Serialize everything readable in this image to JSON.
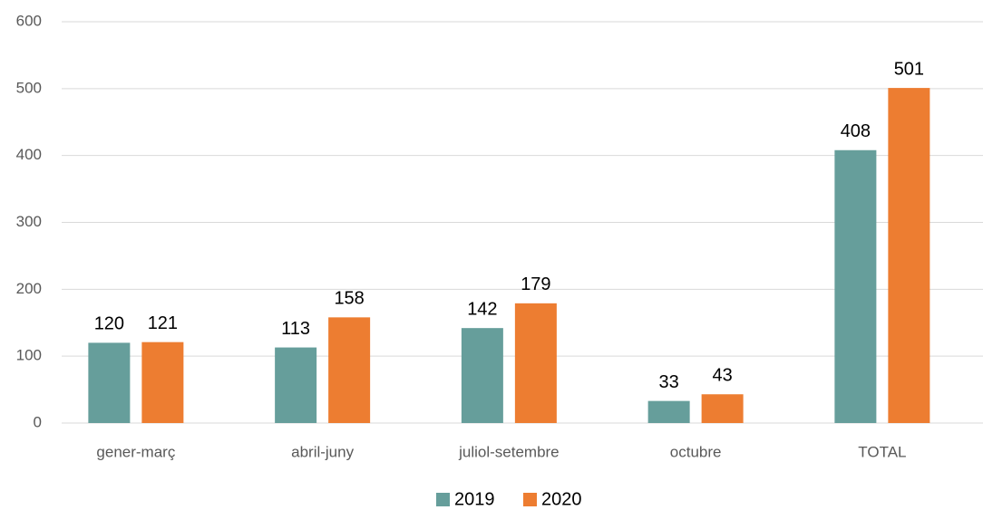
{
  "chart_data": {
    "type": "bar",
    "categories": [
      "gener-març",
      "abril-juny",
      "juliol-setembre",
      "octubre",
      "TOTAL"
    ],
    "series": [
      {
        "name": "2019",
        "color": "#669e9b",
        "values": [
          120,
          113,
          142,
          33,
          408
        ]
      },
      {
        "name": "2020",
        "color": "#ed7d31",
        "values": [
          121,
          158,
          179,
          43,
          501
        ]
      }
    ],
    "ylim": [
      0,
      600
    ],
    "yticks": [
      0,
      100,
      200,
      300,
      400,
      500,
      600
    ],
    "grid": true,
    "legend": "bottom"
  }
}
